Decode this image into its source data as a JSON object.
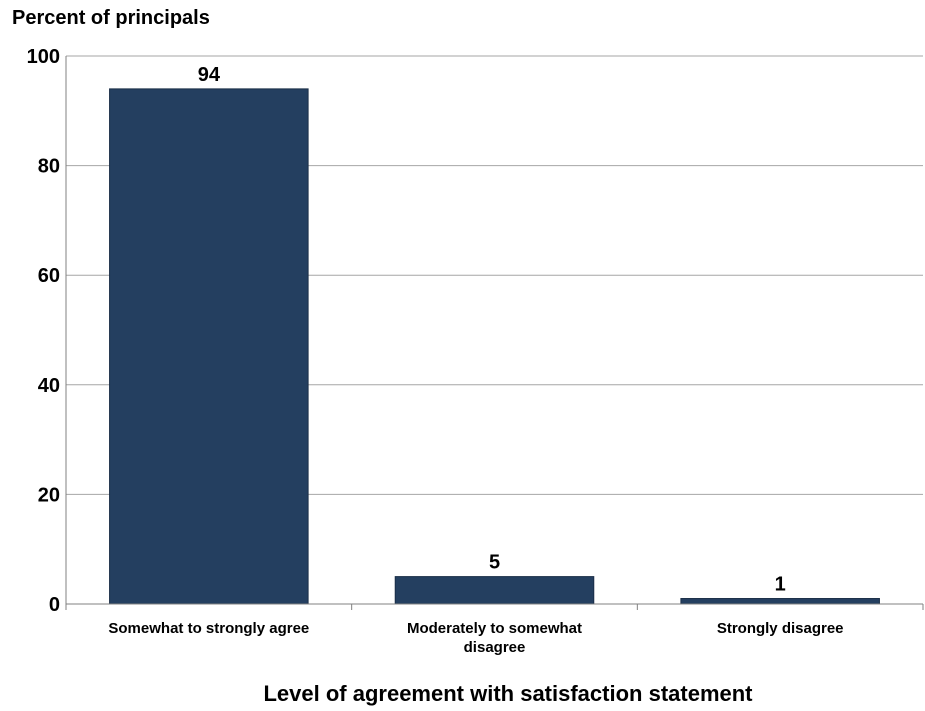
{
  "chart_data": {
    "type": "bar",
    "title": "",
    "ylabel": "Percent of principals",
    "xlabel": "Level of agreement with satisfaction statement",
    "categories": [
      [
        "Somewhat to strongly agree"
      ],
      [
        "Moderately to somewhat",
        "disagree"
      ],
      [
        "Strongly disagree"
      ]
    ],
    "values": [
      94,
      5,
      1
    ],
    "data_labels": [
      "94",
      "5",
      "1"
    ],
    "ylim": [
      0,
      100
    ],
    "yticks": [
      0,
      20,
      40,
      60,
      80,
      100
    ],
    "ytick_labels": [
      "0",
      "20",
      "40",
      "60",
      "80",
      "100"
    ],
    "grid": true,
    "legend": "none",
    "bar_color": "#243f60"
  }
}
